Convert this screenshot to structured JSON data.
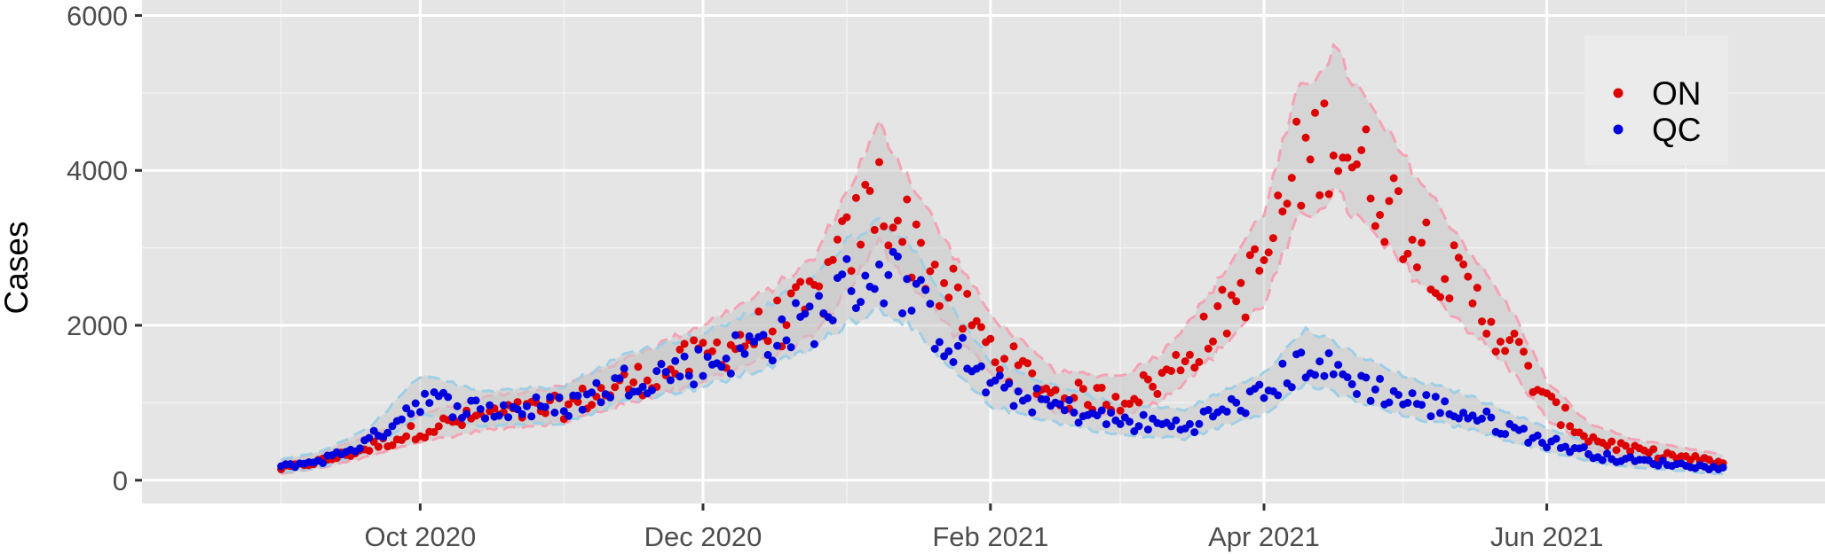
{
  "chart_data": {
    "type": "scatter",
    "title": "",
    "xlabel": "",
    "ylabel": "Cases",
    "x_type": "date",
    "xlim": [
      "2020-08-02",
      "2021-07-31"
    ],
    "ylim": [
      -300,
      6200
    ],
    "grid": true,
    "legend_position": "top-right",
    "x_ticks": [
      {
        "date": "2020-10-01",
        "label": "Oct 2020"
      },
      {
        "date": "2020-12-01",
        "label": "Dec 2020"
      },
      {
        "date": "2021-02-01",
        "label": "Feb 2021"
      },
      {
        "date": "2021-04-01",
        "label": "Apr 2021"
      },
      {
        "date": "2021-06-01",
        "label": "Jun 2021"
      }
    ],
    "x_minor_dates": [
      "2020-09-01",
      "2020-11-01",
      "2021-01-01",
      "2021-03-01",
      "2021-05-01",
      "2021-07-01"
    ],
    "y_ticks": [
      {
        "value": 0,
        "label": "0"
      },
      {
        "value": 2000,
        "label": "2000"
      },
      {
        "value": 4000,
        "label": "4000"
      },
      {
        "value": 6000,
        "label": "6000"
      }
    ],
    "start_date": "2020-09-01",
    "end_date": "2021-07-09",
    "series": [
      {
        "name": "ON",
        "color": "#dd0000",
        "band_color": "#f4a3b4",
        "anchors": [
          [
            "2020-09-01",
            150
          ],
          [
            "2020-09-10",
            250
          ],
          [
            "2020-09-20",
            420
          ],
          [
            "2020-10-01",
            650
          ],
          [
            "2020-10-15",
            830
          ],
          [
            "2020-11-01",
            950
          ],
          [
            "2020-11-15",
            1250
          ],
          [
            "2020-12-01",
            1600
          ],
          [
            "2020-12-15",
            1950
          ],
          [
            "2020-12-25",
            2300
          ],
          [
            "2021-01-01",
            3000
          ],
          [
            "2021-01-08",
            3700
          ],
          [
            "2021-01-15",
            3100
          ],
          [
            "2021-01-22",
            2500
          ],
          [
            "2021-02-01",
            1700
          ],
          [
            "2021-02-15",
            1100
          ],
          [
            "2021-03-01",
            1050
          ],
          [
            "2021-03-10",
            1300
          ],
          [
            "2021-03-20",
            1900
          ],
          [
            "2021-04-01",
            2800
          ],
          [
            "2021-04-08",
            4000
          ],
          [
            "2021-04-16",
            4500
          ],
          [
            "2021-04-25",
            3800
          ],
          [
            "2021-05-05",
            3100
          ],
          [
            "2021-05-15",
            2400
          ],
          [
            "2021-05-25",
            1700
          ],
          [
            "2021-06-01",
            1000
          ],
          [
            "2021-06-10",
            550
          ],
          [
            "2021-06-20",
            380
          ],
          [
            "2021-07-09",
            220
          ]
        ]
      },
      {
        "name": "QC",
        "color": "#0000dd",
        "band_color": "#9ecfe6",
        "anchors": [
          [
            "2020-09-01",
            170
          ],
          [
            "2020-09-10",
            260
          ],
          [
            "2020-09-20",
            500
          ],
          [
            "2020-10-01",
            1050
          ],
          [
            "2020-10-15",
            900
          ],
          [
            "2020-11-01",
            950
          ],
          [
            "2020-11-15",
            1300
          ],
          [
            "2020-12-01",
            1500
          ],
          [
            "2020-12-15",
            1800
          ],
          [
            "2020-12-25",
            2100
          ],
          [
            "2021-01-01",
            2500
          ],
          [
            "2021-01-08",
            2700
          ],
          [
            "2021-01-13",
            2550
          ],
          [
            "2021-01-20",
            2000
          ],
          [
            "2021-02-01",
            1200
          ],
          [
            "2021-02-15",
            950
          ],
          [
            "2021-03-01",
            750
          ],
          [
            "2021-03-15",
            700
          ],
          [
            "2021-04-01",
            1100
          ],
          [
            "2021-04-10",
            1550
          ],
          [
            "2021-04-20",
            1300
          ],
          [
            "2021-05-01",
            1050
          ],
          [
            "2021-05-15",
            850
          ],
          [
            "2021-06-01",
            500
          ],
          [
            "2021-06-15",
            280
          ],
          [
            "2021-07-09",
            150
          ]
        ]
      }
    ]
  }
}
